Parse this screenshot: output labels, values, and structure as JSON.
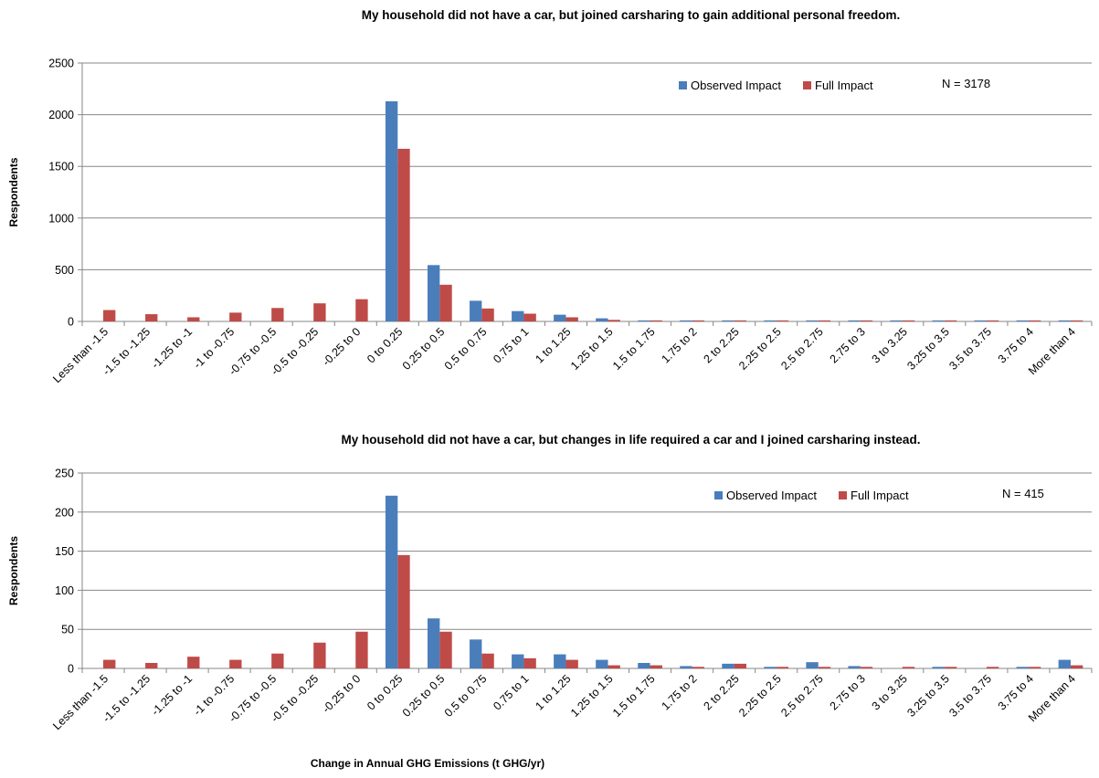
{
  "chart_data": [
    {
      "type": "bar",
      "title": "My household did not have a car, but joined carsharing to gain additional personal freedom.",
      "ylabel": "Respondents",
      "xlabel": "",
      "ylim": [
        0,
        2500
      ],
      "yticks": [
        "0",
        "500",
        "1000",
        "1500",
        "2000",
        "2500"
      ],
      "annotation": "N = 3178",
      "legend_position": "top-right",
      "categories": [
        "Less than -1.5",
        "-1.5 to -1.25",
        "-1.25 to -1",
        "-1 to -0.75",
        "-0.75 to -0.5",
        "-0.5 to -0.25",
        "-0.25 to 0",
        "0 to 0.25",
        "0.25 to 0.5",
        "0.5 to 0.75",
        "0.75 to 1",
        "1 to 1.25",
        "1.25 to 1.5",
        "1.5 to 1.75",
        "1.75 to 2",
        "2 to 2.25",
        "2.25 to 2.5",
        "2.5 to 2.75",
        "2.75 to 3",
        "3 to 3.25",
        "3.25 to 3.5",
        "3.5 to 3.75",
        "3.75 to 4",
        "More than 4"
      ],
      "series": [
        {
          "name": "Observed Impact",
          "color": "#4a7ebb",
          "values": [
            0,
            0,
            0,
            0,
            0,
            0,
            0,
            2130,
            545,
            200,
            100,
            65,
            30,
            10,
            10,
            10,
            10,
            10,
            10,
            10,
            10,
            10,
            10,
            10
          ]
        },
        {
          "name": "Full Impact",
          "color": "#be4b48",
          "values": [
            110,
            70,
            40,
            85,
            130,
            175,
            215,
            1670,
            355,
            125,
            75,
            40,
            15,
            10,
            10,
            10,
            10,
            10,
            10,
            10,
            10,
            10,
            10,
            10
          ]
        }
      ]
    },
    {
      "type": "bar",
      "title": "My household did not have a car, but changes in life required a car and I joined carsharing instead.",
      "ylabel": "Respondents",
      "xlabel": "Change in Annual GHG Emissions (t GHG/yr)",
      "ylim": [
        0,
        250
      ],
      "yticks": [
        "0",
        "50",
        "100",
        "150",
        "200",
        "250"
      ],
      "annotation": "N = 415",
      "legend_position": "top-right",
      "categories": [
        "Less than -1.5",
        "-1.5 to -1.25",
        "-1.25 to -1",
        "-1 to -0.75",
        "-0.75 to -0.5",
        "-0.5 to -0.25",
        "-0.25 to 0",
        "0 to 0.25",
        "0.25 to 0.5",
        "0.5 to 0.75",
        "0.75 to 1",
        "1 to 1.25",
        "1.25 to 1.5",
        "1.5 to 1.75",
        "1.75 to 2",
        "2 to 2.25",
        "2.25 to 2.5",
        "2.5 to 2.75",
        "2.75 to 3",
        "3 to 3.25",
        "3.25 to 3.5",
        "3.5 to 3.75",
        "3.75 to 4",
        "More than 4"
      ],
      "series": [
        {
          "name": "Observed Impact",
          "color": "#4a7ebb",
          "values": [
            0,
            0,
            0,
            0,
            0,
            0,
            0,
            221,
            64,
            37,
            18,
            18,
            11,
            7,
            3,
            6,
            2,
            8,
            3,
            0,
            2,
            0,
            2,
            11
          ]
        },
        {
          "name": "Full Impact",
          "color": "#be4b48",
          "values": [
            11,
            7,
            15,
            11,
            19,
            33,
            47,
            145,
            47,
            19,
            13,
            11,
            4,
            4,
            2,
            6,
            2,
            2,
            2,
            2,
            2,
            2,
            2,
            4
          ]
        }
      ]
    }
  ]
}
